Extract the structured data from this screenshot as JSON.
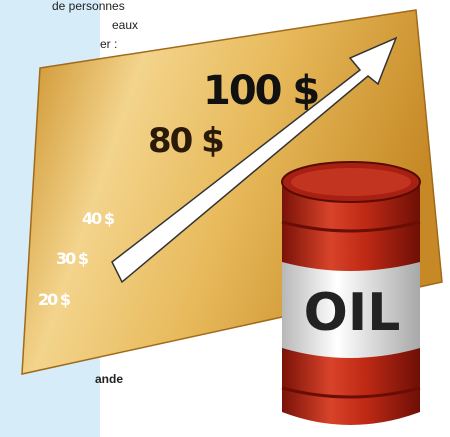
{
  "sidebar": {
    "lines": [
      "de personnes",
      "eaux",
      "er :"
    ],
    "footer": "ande"
  },
  "board": {
    "prices": [
      "100 $",
      "80 $",
      "40 $",
      "30 $",
      "20 $"
    ]
  },
  "barrel": {
    "label": "OIL"
  }
}
